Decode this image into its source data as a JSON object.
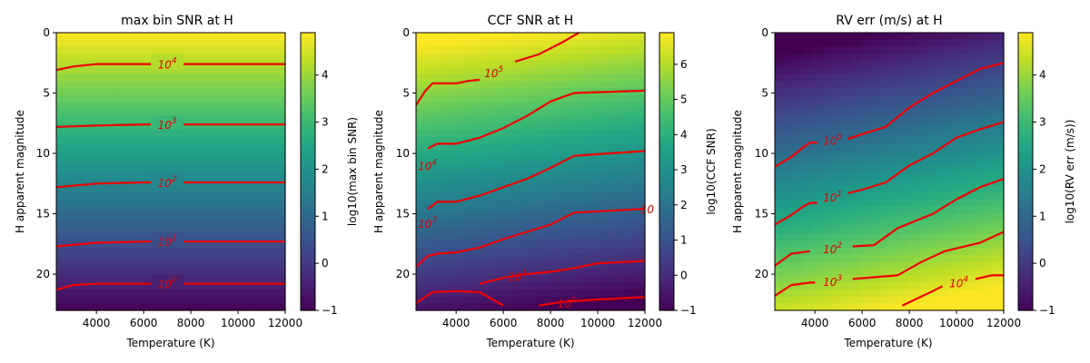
{
  "chart_data": [
    {
      "type": "heatmap",
      "title": "max bin SNR at H",
      "xlabel": "Temperature (K)",
      "ylabel": "H apparent magnitude",
      "colorbar_label": "log10(max bin SNR)",
      "colormap": "viridis",
      "xlim": [
        2300,
        12000
      ],
      "ylim": [
        23,
        0
      ],
      "y_inverted": true,
      "xticks": [
        4000,
        6000,
        8000,
        10000,
        12000
      ],
      "yticks": [
        0,
        5,
        10,
        15,
        20
      ],
      "colorbar_range": [
        -1,
        4.9
      ],
      "colorbar_ticks": [
        -1,
        0,
        1,
        2,
        3,
        4
      ],
      "field": {
        "top_value": 4.9,
        "bottom_value": -1,
        "slope_per_mag": -0.2,
        "temp_slope_per_kk": 0.0
      },
      "contours": [
        {
          "label": "10^4",
          "points": [
            [
              2300,
              3.1
            ],
            [
              3000,
              2.8
            ],
            [
              4000,
              2.6
            ],
            [
              6000,
              2.6
            ],
            [
              8000,
              2.6
            ],
            [
              10000,
              2.6
            ],
            [
              12000,
              2.6
            ]
          ]
        },
        {
          "label": "10^3",
          "points": [
            [
              2300,
              7.8
            ],
            [
              4000,
              7.7
            ],
            [
              6000,
              7.6
            ],
            [
              8000,
              7.6
            ],
            [
              10000,
              7.6
            ],
            [
              12000,
              7.6
            ]
          ]
        },
        {
          "label": "10^2",
          "points": [
            [
              2300,
              12.8
            ],
            [
              4000,
              12.5
            ],
            [
              6000,
              12.4
            ],
            [
              8000,
              12.4
            ],
            [
              10000,
              12.4
            ],
            [
              12000,
              12.4
            ]
          ]
        },
        {
          "label": "10^1",
          "points": [
            [
              2300,
              17.7
            ],
            [
              4000,
              17.4
            ],
            [
              6000,
              17.3
            ],
            [
              8000,
              17.3
            ],
            [
              10000,
              17.3
            ],
            [
              12000,
              17.3
            ]
          ]
        },
        {
          "label": "10^0",
          "points": [
            [
              2300,
              21.3
            ],
            [
              3000,
              20.9
            ],
            [
              4000,
              20.8
            ],
            [
              6000,
              20.8
            ],
            [
              8000,
              20.8
            ],
            [
              10000,
              20.8
            ],
            [
              12000,
              20.8
            ]
          ]
        }
      ]
    },
    {
      "type": "heatmap",
      "title": "CCF SNR at H",
      "xlabel": "Temperature (K)",
      "ylabel": "H apparent magnitude",
      "colorbar_label": "log10(CCF SNR)",
      "colormap": "viridis",
      "xlim": [
        2300,
        12000
      ],
      "ylim": [
        23,
        0
      ],
      "y_inverted": true,
      "xticks": [
        4000,
        6000,
        8000,
        10000,
        12000
      ],
      "yticks": [
        0,
        5,
        10,
        15,
        20
      ],
      "colorbar_range": [
        -1,
        6.9
      ],
      "colorbar_ticks": [
        -1,
        0,
        1,
        2,
        3,
        4,
        5,
        6
      ],
      "field": {
        "top_value": 6.9,
        "bottom_value": -1,
        "slope_per_mag": -0.2,
        "temp_slope_per_kk": -0.08
      },
      "contours": [
        {
          "label": "10^5",
          "points": [
            [
              6500,
              2.4
            ],
            [
              7500,
              1.8
            ],
            [
              8500,
              0.8
            ],
            [
              9200,
              0.0
            ]
          ]
        },
        {
          "label": "10^5",
          "points": [
            [
              2300,
              6.0
            ],
            [
              2700,
              4.8
            ],
            [
              3000,
              4.2
            ],
            [
              4000,
              4.2
            ],
            [
              4500,
              4.0
            ],
            [
              5000,
              3.9
            ]
          ]
        },
        {
          "label": "10^4",
          "points": [
            [
              2800,
              9.6
            ],
            [
              3200,
              9.2
            ],
            [
              4000,
              9.2
            ],
            [
              5000,
              8.7
            ],
            [
              6000,
              7.9
            ],
            [
              7000,
              6.9
            ],
            [
              8000,
              5.7
            ],
            [
              9000,
              5.0
            ],
            [
              12000,
              4.8
            ]
          ]
        },
        {
          "label": "10^3",
          "points": [
            [
              2800,
              14.6
            ],
            [
              3200,
              14.0
            ],
            [
              4000,
              14.0
            ],
            [
              5000,
              13.5
            ],
            [
              6000,
              12.8
            ],
            [
              7000,
              12.1
            ],
            [
              8000,
              11.2
            ],
            [
              9000,
              10.2
            ],
            [
              12000,
              9.8
            ]
          ]
        },
        {
          "label": "10^2",
          "points": [
            [
              2300,
              19.4
            ],
            [
              2800,
              18.5
            ],
            [
              3200,
              18.3
            ],
            [
              4000,
              18.2
            ],
            [
              5000,
              17.8
            ],
            [
              6000,
              17.1
            ],
            [
              7000,
              16.5
            ],
            [
              8000,
              15.9
            ],
            [
              9000,
              14.9
            ],
            [
              12000,
              14.6
            ]
          ]
        },
        {
          "label": "10^1",
          "points": [
            [
              5000,
              20.8
            ],
            [
              6000,
              20.3
            ],
            [
              7000,
              20.0
            ],
            [
              8000,
              19.8
            ],
            [
              9000,
              19.5
            ],
            [
              10000,
              19.1
            ],
            [
              12000,
              18.9
            ]
          ]
        },
        {
          "label": "10^0",
          "points": [
            [
              2300,
              22.4
            ],
            [
              3000,
              21.5
            ],
            [
              4000,
              21.4
            ],
            [
              5000,
              21.5
            ],
            [
              6000,
              22.6
            ]
          ]
        },
        {
          "label": "10^0",
          "points": [
            [
              7500,
              22.6
            ],
            [
              8500,
              22.3
            ],
            [
              10000,
              22.1
            ],
            [
              12000,
              21.9
            ]
          ]
        }
      ],
      "edge_labels": [
        {
          "text": "10^4",
          "x": 2380,
          "y": 11.0
        },
        {
          "text": "10^3",
          "x": 2380,
          "y": 15.8
        },
        {
          "text": "10",
          "x": 11800,
          "y": 14.6
        }
      ]
    },
    {
      "type": "heatmap",
      "title": "RV err (m/s) at H",
      "xlabel": "Temperature (K)",
      "ylabel": "H apparent magnitude",
      "colorbar_label": "log10(RV err (m/s))",
      "colormap": "viridis",
      "xlim": [
        2300,
        12000
      ],
      "ylim": [
        23,
        0
      ],
      "y_inverted": true,
      "xticks": [
        4000,
        6000,
        8000,
        10000,
        12000
      ],
      "yticks": [
        0,
        5,
        10,
        15,
        20
      ],
      "colorbar_range": [
        -1,
        4.9
      ],
      "colorbar_ticks": [
        -1,
        0,
        1,
        2,
        3,
        4
      ],
      "field": {
        "top_value": -1,
        "bottom_value": 4.9,
        "slope_per_mag": 0.22,
        "temp_slope_per_kk": 0.1
      },
      "contours": [
        {
          "label": "10^0",
          "points": [
            [
              2300,
              11.1
            ],
            [
              3000,
              10.3
            ],
            [
              3500,
              9.5
            ],
            [
              3800,
              9.1
            ],
            [
              4100,
              9.1
            ]
          ]
        },
        {
          "label": "10^0",
          "points": [
            [
              5400,
              8.8
            ],
            [
              6000,
              8.4
            ],
            [
              7000,
              7.8
            ],
            [
              8000,
              6.2
            ],
            [
              9000,
              5.0
            ],
            [
              10000,
              4.0
            ],
            [
              11000,
              3.0
            ],
            [
              12000,
              2.5
            ]
          ]
        },
        {
          "label": "10^1",
          "points": [
            [
              2300,
              15.9
            ],
            [
              3000,
              15.1
            ],
            [
              3500,
              14.4
            ],
            [
              3800,
              14.1
            ],
            [
              4100,
              14.1
            ]
          ]
        },
        {
          "label": "10^1",
          "points": [
            [
              5400,
              13.3
            ],
            [
              6000,
              13.0
            ],
            [
              7000,
              12.4
            ],
            [
              8000,
              11.0
            ],
            [
              9000,
              10.0
            ],
            [
              10000,
              8.7
            ],
            [
              11000,
              8.0
            ],
            [
              12000,
              7.4
            ]
          ]
        },
        {
          "label": "10^2",
          "points": [
            [
              2300,
              19.3
            ],
            [
              3000,
              18.3
            ],
            [
              3800,
              18.1
            ]
          ]
        },
        {
          "label": "10^2",
          "points": [
            [
              5600,
              17.7
            ],
            [
              6500,
              17.6
            ],
            [
              7500,
              16.2
            ],
            [
              9000,
              15.0
            ],
            [
              10000,
              13.8
            ],
            [
              11000,
              12.8
            ],
            [
              12000,
              12.1
            ]
          ]
        },
        {
          "label": "10^3",
          "points": [
            [
              2300,
              21.8
            ],
            [
              3000,
              20.9
            ],
            [
              3800,
              20.7
            ],
            [
              4000,
              20.7
            ]
          ]
        },
        {
          "label": "10^3",
          "points": [
            [
              5600,
              20.4
            ],
            [
              7500,
              20.1
            ],
            [
              8500,
              19.0
            ],
            [
              9500,
              18.1
            ],
            [
              11000,
              17.4
            ],
            [
              12000,
              16.5
            ]
          ]
        },
        {
          "label": "10^4",
          "points": [
            [
              7700,
              22.6
            ],
            [
              9000,
              21.4
            ],
            [
              9400,
              21.0
            ]
          ]
        },
        {
          "label": "10^4",
          "points": [
            [
              10800,
              20.4
            ],
            [
              11500,
              20.1
            ],
            [
              12000,
              20.1
            ]
          ]
        }
      ]
    }
  ],
  "panels_text": [
    {
      "title": "max bin SNR at H",
      "xlabel": "Temperature (K)",
      "ylabel": "H apparent magnitude",
      "colorbar_label": "log10(max bin SNR)",
      "contour_labels": [
        "10^4",
        "10^3",
        "10^2",
        "10^1",
        "10^0"
      ]
    },
    {
      "title": "CCF SNR at H",
      "xlabel": "Temperature (K)",
      "ylabel": "H apparent magnitude",
      "colorbar_label": "log10(CCF SNR)",
      "contour_labels": [
        "10^5",
        "10^4",
        "10^3",
        "10",
        "10^1",
        "10^0"
      ]
    },
    {
      "title": "RV err (m/s) at H",
      "xlabel": "Temperature (K)",
      "ylabel": "H apparent magnitude",
      "colorbar_label": "log10(RV err (m/s))",
      "contour_labels": [
        "10^0",
        "10^1",
        "10^2",
        "10^3",
        "10^4"
      ]
    }
  ]
}
